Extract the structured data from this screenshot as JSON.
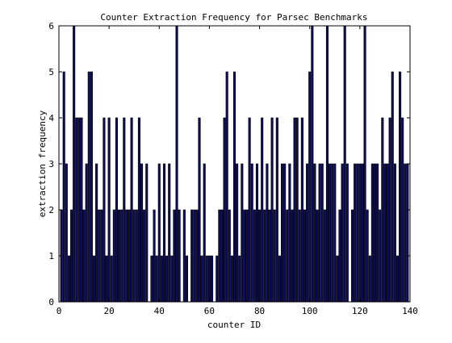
{
  "chart_data": {
    "type": "bar",
    "title": "Counter Extraction Frequency for Parsec Benchmarks",
    "xlabel": "counter ID",
    "ylabel": "extraction frequency",
    "xlim": [
      0,
      140
    ],
    "ylim": [
      0,
      6
    ],
    "x_ticks": [
      "0",
      "20",
      "40",
      "60",
      "80",
      "100",
      "120",
      "140"
    ],
    "y_ticks": [
      "0",
      "1",
      "2",
      "3",
      "4",
      "5",
      "6"
    ],
    "grid": false,
    "bar_color": "#0d0d5c",
    "edge_color": "#000000",
    "x": [
      1,
      2,
      3,
      4,
      5,
      6,
      7,
      8,
      9,
      10,
      11,
      12,
      13,
      14,
      15,
      16,
      17,
      18,
      19,
      20,
      21,
      22,
      23,
      24,
      25,
      26,
      27,
      28,
      29,
      30,
      31,
      32,
      33,
      34,
      35,
      36,
      37,
      38,
      39,
      40,
      41,
      42,
      43,
      44,
      45,
      46,
      47,
      48,
      49,
      50,
      51,
      52,
      53,
      54,
      55,
      56,
      57,
      58,
      59,
      60,
      61,
      62,
      63,
      64,
      65,
      66,
      67,
      68,
      69,
      70,
      71,
      72,
      73,
      74,
      75,
      76,
      77,
      78,
      79,
      80,
      81,
      82,
      83,
      84,
      85,
      86,
      87,
      88,
      89,
      90,
      91,
      92,
      93,
      94,
      95,
      96,
      97,
      98,
      99,
      100,
      101,
      102,
      103,
      104,
      105,
      106,
      107,
      108,
      109,
      110,
      111,
      112,
      113,
      114,
      115,
      116,
      117,
      118,
      119,
      120,
      121,
      122,
      123,
      124,
      125,
      126,
      127,
      128,
      129,
      130,
      131,
      132,
      133,
      134,
      135,
      136,
      137,
      138,
      139
    ],
    "values": [
      2,
      5,
      3,
      1,
      2,
      6,
      4,
      4,
      4,
      2,
      3,
      5,
      5,
      1,
      3,
      2,
      2,
      4,
      1,
      4,
      1,
      2,
      4,
      2,
      2,
      4,
      2,
      2,
      4,
      2,
      2,
      4,
      3,
      2,
      3,
      0,
      1,
      2,
      1,
      3,
      1,
      3,
      1,
      3,
      1,
      2,
      6,
      2,
      0,
      2,
      1,
      0,
      2,
      2,
      2,
      4,
      1,
      3,
      1,
      1,
      1,
      0,
      1,
      2,
      2,
      4,
      5,
      2,
      1,
      5,
      3,
      1,
      3,
      2,
      2,
      4,
      3,
      2,
      3,
      2,
      4,
      2,
      3,
      2,
      4,
      2,
      4,
      1,
      3,
      3,
      2,
      3,
      2,
      4,
      4,
      2,
      4,
      2,
      3,
      5,
      6,
      3,
      2,
      3,
      3,
      2,
      6,
      3,
      3,
      3,
      1,
      2,
      3,
      6,
      3,
      0,
      2,
      3,
      3,
      3,
      3,
      6,
      2,
      1,
      3,
      3,
      3,
      2,
      4,
      3,
      3,
      4,
      5,
      3,
      1,
      5,
      4,
      3,
      3
    ]
  }
}
